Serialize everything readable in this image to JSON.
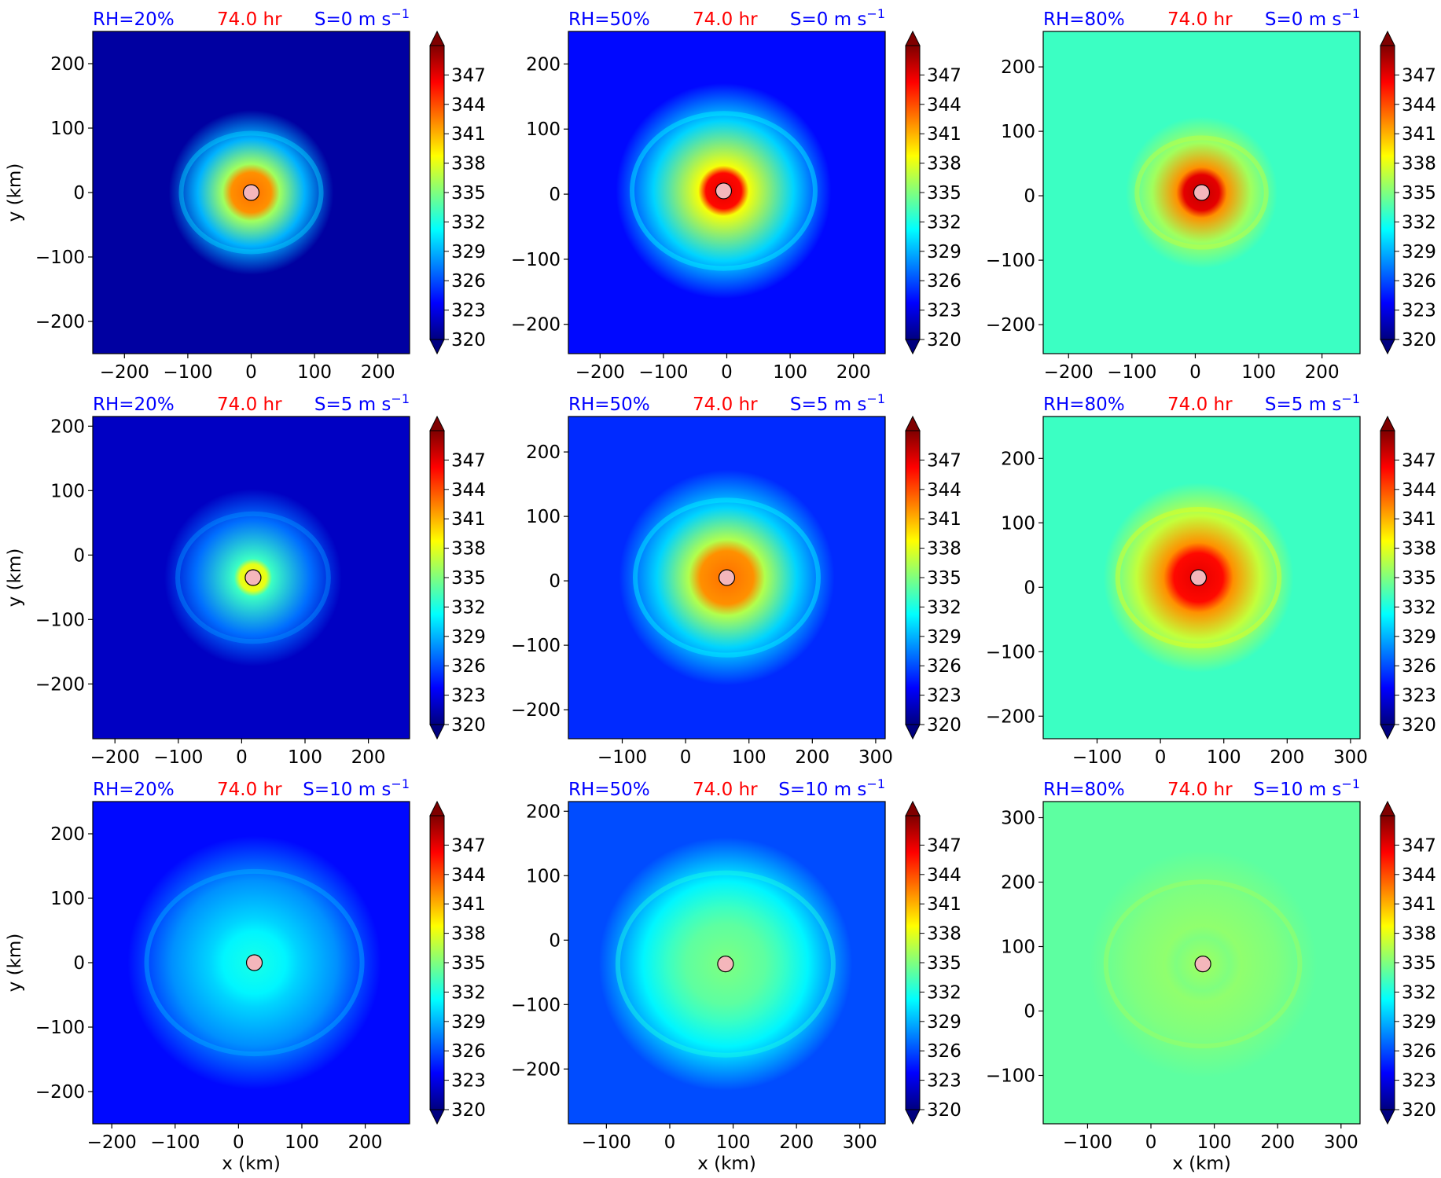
{
  "figure": {
    "colorbar_ticks": [
      320,
      323,
      326,
      329,
      332,
      335,
      338,
      341,
      344,
      347
    ],
    "colormap": [
      "#00007f",
      "#0000ff",
      "#007fff",
      "#00ffff",
      "#7fff7f",
      "#ffff00",
      "#ff7f00",
      "#ff0000",
      "#7f0000"
    ],
    "label_colors": {
      "rh": "#0000ff",
      "time": "#ff0000",
      "shear": "#0000ff"
    },
    "marker_color": "#f4b6bb",
    "xlabel": "x (km)",
    "ylabel": "y (km)"
  },
  "chart_data": [
    {
      "type": "heatmap",
      "row": 0,
      "col": 0,
      "rh_label": "RH=20%",
      "time_label": "74.0 hr",
      "shear_label": "S=0 m s",
      "shear_sup": "−1",
      "xlim": [
        -250,
        250
      ],
      "ylim": [
        -250,
        250
      ],
      "xticks": [
        -200,
        -100,
        0,
        100,
        200
      ],
      "yticks": [
        -200,
        -100,
        0,
        100,
        200
      ],
      "center": [
        0,
        0
      ],
      "background": 321,
      "peak": 343,
      "core_radius": 45,
      "halo_radius": 130,
      "halo_level": 329,
      "xlabel": "",
      "ylabel": "y (km)"
    },
    {
      "type": "heatmap",
      "row": 0,
      "col": 1,
      "rh_label": "RH=50%",
      "time_label": "74.0 hr",
      "shear_label": "S=0 m s",
      "shear_sup": "−1",
      "xlim": [
        -250,
        250
      ],
      "ylim": [
        -245,
        250
      ],
      "xticks": [
        -200,
        -100,
        0,
        100,
        200
      ],
      "yticks": [
        -200,
        -100,
        0,
        100,
        200
      ],
      "center": [
        -5,
        5
      ],
      "background": 324,
      "peak": 347,
      "core_radius": 40,
      "halo_radius": 170,
      "halo_level": 330,
      "xlabel": "",
      "ylabel": ""
    },
    {
      "type": "heatmap",
      "row": 0,
      "col": 2,
      "rh_label": "RH=80%",
      "time_label": "74.0 hr",
      "shear_label": "S=0 m s",
      "shear_sup": "−1",
      "xlim": [
        -240,
        260
      ],
      "ylim": [
        -245,
        255
      ],
      "xticks": [
        -200,
        -100,
        0,
        100,
        200
      ],
      "yticks": [
        -200,
        -100,
        0,
        100,
        200
      ],
      "center": [
        10,
        5
      ],
      "background": 333,
      "peak": 348,
      "core_radius": 40,
      "halo_radius": 120,
      "halo_level": 336,
      "xlabel": "",
      "ylabel": ""
    },
    {
      "type": "heatmap",
      "row": 1,
      "col": 0,
      "rh_label": "RH=20%",
      "time_label": "74.0 hr",
      "shear_label": "S=5 m s",
      "shear_sup": "−1",
      "xlim": [
        -235,
        265
      ],
      "ylim": [
        -285,
        215
      ],
      "xticks": [
        -200,
        -100,
        0,
        100,
        200
      ],
      "yticks": [
        -200,
        -100,
        0,
        100,
        200
      ],
      "center": [
        18,
        -35
      ],
      "background": 322,
      "peak": 339,
      "core_radius": 30,
      "halo_radius": 140,
      "halo_level": 327,
      "xlabel": "",
      "ylabel": "y (km)"
    },
    {
      "type": "heatmap",
      "row": 1,
      "col": 1,
      "rh_label": "RH=50%",
      "time_label": "74.0 hr",
      "shear_label": "S=5 m s",
      "shear_sup": "−1",
      "xlim": [
        -185,
        315
      ],
      "ylim": [
        -245,
        255
      ],
      "xticks": [
        -100,
        0,
        100,
        200,
        300
      ],
      "yticks": [
        -200,
        -100,
        0,
        100,
        200
      ],
      "center": [
        65,
        5
      ],
      "background": 325,
      "peak": 343,
      "core_radius": 60,
      "halo_radius": 170,
      "halo_level": 330,
      "xlabel": "",
      "ylabel": ""
    },
    {
      "type": "heatmap",
      "row": 1,
      "col": 2,
      "rh_label": "RH=80%",
      "time_label": "74.0 hr",
      "shear_label": "S=5 m s",
      "shear_sup": "−1",
      "xlim": [
        -185,
        315
      ],
      "ylim": [
        -235,
        265
      ],
      "xticks": [
        -100,
        0,
        100,
        200,
        300
      ],
      "yticks": [
        -200,
        -100,
        0,
        100,
        200
      ],
      "center": [
        60,
        15
      ],
      "background": 333,
      "peak": 347,
      "core_radius": 55,
      "halo_radius": 150,
      "halo_level": 337,
      "xlabel": "",
      "ylabel": ""
    },
    {
      "type": "heatmap",
      "row": 2,
      "col": 0,
      "rh_label": "RH=20%",
      "time_label": "74.0 hr",
      "shear_label": "S=10 m s",
      "shear_sup": "−1",
      "xlim": [
        -230,
        270
      ],
      "ylim": [
        -250,
        250
      ],
      "xticks": [
        -200,
        -100,
        0,
        100,
        200
      ],
      "yticks": [
        -200,
        -100,
        0,
        100,
        200
      ],
      "center": [
        25,
        0
      ],
      "background": 324,
      "peak": 332,
      "core_radius": 70,
      "halo_radius": 200,
      "halo_level": 328,
      "xlabel": "x (km)",
      "ylabel": "y (km)"
    },
    {
      "type": "heatmap",
      "row": 2,
      "col": 1,
      "rh_label": "RH=50%",
      "time_label": "74.0 hr",
      "shear_label": "S=10 m s",
      "shear_sup": "−1",
      "xlim": [
        -160,
        340
      ],
      "ylim": [
        -285,
        215
      ],
      "xticks": [
        -100,
        0,
        100,
        200,
        300
      ],
      "yticks": [
        -200,
        -100,
        0,
        100,
        200
      ],
      "center": [
        88,
        -37
      ],
      "background": 326,
      "peak": 335,
      "core_radius": 90,
      "halo_radius": 200,
      "halo_level": 331,
      "xlabel": "x (km)",
      "ylabel": ""
    },
    {
      "type": "heatmap",
      "row": 2,
      "col": 2,
      "rh_label": "RH=80%",
      "time_label": "74.0 hr",
      "shear_label": "S=10 m s",
      "shear_sup": "−1",
      "xlim": [
        -170,
        330
      ],
      "ylim": [
        -175,
        325
      ],
      "xticks": [
        -100,
        0,
        100,
        200,
        300
      ],
      "yticks": [
        -100,
        0,
        100,
        200,
        300
      ],
      "center": [
        82,
        73
      ],
      "background": 334,
      "peak": 336,
      "core_radius": 60,
      "halo_radius": 180,
      "halo_level": 335,
      "xlabel": "x (km)",
      "ylabel": ""
    }
  ]
}
